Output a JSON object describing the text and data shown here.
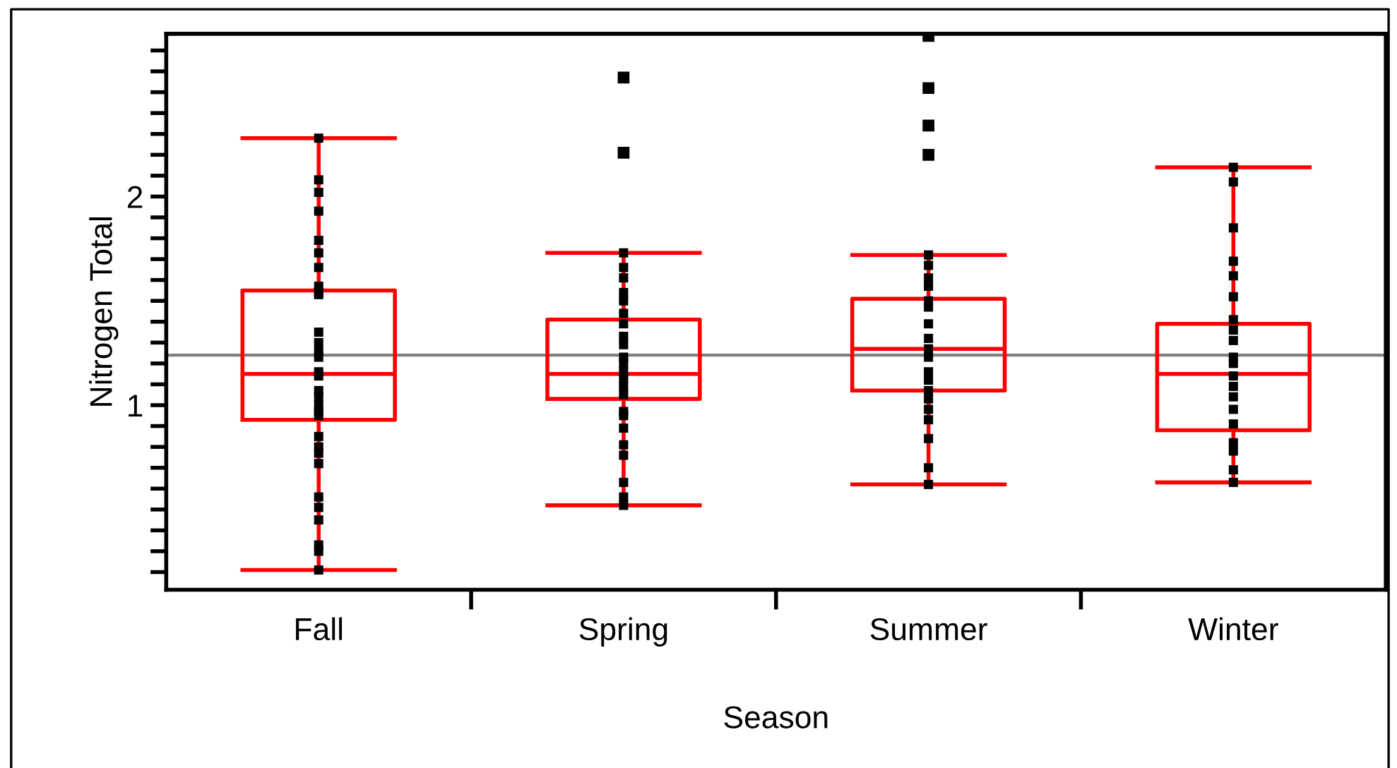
{
  "chart_data": {
    "type": "box",
    "xlabel": "Season",
    "ylabel": "Nitrogen Total",
    "categories": [
      "Fall",
      "Spring",
      "Summer",
      "Winter"
    ],
    "ylim": [
      0.115,
      2.78
    ],
    "yticks": [
      {
        "value": 0.2,
        "label": null
      },
      {
        "value": 0.3,
        "label": null
      },
      {
        "value": 0.4,
        "label": null
      },
      {
        "value": 0.5,
        "label": null
      },
      {
        "value": 0.6,
        "label": null
      },
      {
        "value": 0.7,
        "label": null
      },
      {
        "value": 0.8,
        "label": null
      },
      {
        "value": 0.9,
        "label": null
      },
      1,
      {
        "value": 1.1,
        "label": null
      },
      {
        "value": 1.2,
        "label": null
      },
      {
        "value": 1.3,
        "label": null
      },
      {
        "value": 1.4,
        "label": null
      },
      {
        "value": 1.5,
        "label": null
      },
      {
        "value": 1.6,
        "label": null
      },
      {
        "value": 1.7,
        "label": null
      },
      {
        "value": 1.8,
        "label": null
      },
      {
        "value": 1.9,
        "label": null
      },
      2,
      {
        "value": 2.1,
        "label": null
      },
      {
        "value": 2.2,
        "label": null
      },
      {
        "value": 2.3,
        "label": null
      },
      {
        "value": 2.4,
        "label": null
      },
      {
        "value": 2.5,
        "label": null
      },
      {
        "value": 2.6,
        "label": null
      },
      {
        "value": 2.7,
        "label": null
      }
    ],
    "grid": false,
    "legend": false,
    "ref_lines": [
      {
        "axis": "y",
        "value": 1.24,
        "color": "#808080"
      }
    ],
    "series": [
      {
        "color": "#ff0000",
        "boxes": [
          {
            "low": 0.21,
            "q1": 0.93,
            "median": 1.15,
            "q3": 1.55,
            "high": 2.28
          },
          {
            "low": 0.52,
            "q1": 1.03,
            "median": 1.15,
            "q3": 1.41,
            "high": 1.73,
            "outliers": [
              2.57,
              2.21
            ]
          },
          {
            "low": 0.62,
            "q1": 1.07,
            "median": 1.27,
            "q3": 1.51,
            "high": 1.72,
            "outliers": [
              2.77,
              2.52,
              2.34,
              2.2
            ]
          },
          {
            "low": 0.63,
            "q1": 0.88,
            "median": 1.15,
            "q3": 1.39,
            "high": 2.14
          }
        ]
      },
      {
        "type": "scatter",
        "color": "#000000",
        "marker": "square",
        "x": [
          "Fall",
          "Fall",
          "Fall",
          "Fall",
          "Fall",
          "Fall",
          "Fall",
          "Fall",
          "Fall",
          "Fall",
          "Fall",
          "Fall",
          "Fall",
          "Fall",
          "Fall",
          "Fall",
          "Fall",
          "Fall",
          "Fall",
          "Fall",
          "Fall",
          "Fall",
          "Fall",
          "Fall",
          "Fall",
          "Fall",
          "Fall",
          "Fall",
          "Fall",
          "Fall",
          "Fall",
          "Spring",
          "Spring",
          "Spring",
          "Spring",
          "Spring",
          "Spring",
          "Spring",
          "Spring",
          "Spring",
          "Spring",
          "Spring",
          "Spring",
          "Spring",
          "Spring",
          "Spring",
          "Spring",
          "Spring",
          "Spring",
          "Spring",
          "Spring",
          "Spring",
          "Spring",
          "Spring",
          "Summer",
          "Summer",
          "Summer",
          "Summer",
          "Summer",
          "Summer",
          "Summer",
          "Summer",
          "Summer",
          "Summer",
          "Summer",
          "Summer",
          "Summer",
          "Summer",
          "Summer",
          "Summer",
          "Summer",
          "Summer",
          "Summer",
          "Winter",
          "Winter",
          "Winter",
          "Winter",
          "Winter",
          "Winter",
          "Winter",
          "Winter",
          "Winter",
          "Winter",
          "Winter",
          "Winter",
          "Winter",
          "Winter",
          "Winter",
          "Winter",
          "Winter",
          "Winter",
          "Winter",
          "Winter"
        ],
        "values": [
          2.28,
          2.08,
          2.02,
          1.93,
          1.79,
          1.73,
          1.66,
          1.57,
          1.54,
          1.53,
          1.35,
          1.3,
          1.26,
          1.23,
          1.16,
          1.14,
          1.07,
          1.04,
          1.0,
          0.97,
          0.95,
          0.85,
          0.8,
          0.77,
          0.72,
          0.56,
          0.51,
          0.45,
          0.33,
          0.3,
          0.21,
          1.73,
          1.66,
          1.61,
          1.54,
          1.5,
          1.44,
          1.39,
          1.33,
          1.29,
          1.23,
          1.2,
          1.16,
          1.13,
          1.09,
          1.05,
          0.97,
          0.95,
          0.89,
          0.81,
          0.76,
          0.63,
          0.56,
          0.52,
          1.72,
          1.67,
          1.61,
          1.57,
          1.5,
          1.47,
          1.39,
          1.32,
          1.27,
          1.23,
          1.16,
          1.12,
          1.07,
          1.03,
          0.98,
          0.93,
          0.84,
          0.7,
          0.62,
          2.14,
          2.07,
          1.85,
          1.69,
          1.62,
          1.52,
          1.41,
          1.36,
          1.31,
          1.23,
          1.2,
          1.14,
          1.09,
          1.04,
          0.98,
          0.91,
          0.82,
          0.78,
          0.69,
          0.63
        ]
      }
    ]
  }
}
